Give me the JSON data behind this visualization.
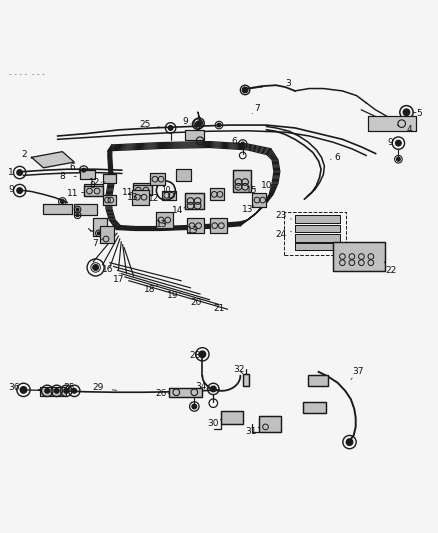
{
  "bg_color": "#f5f5f5",
  "line_color": "#1a1a1a",
  "label_color": "#111111",
  "title_text": "- - - -  - - -",
  "figsize": [
    4.38,
    5.33
  ],
  "dpi": 100
}
